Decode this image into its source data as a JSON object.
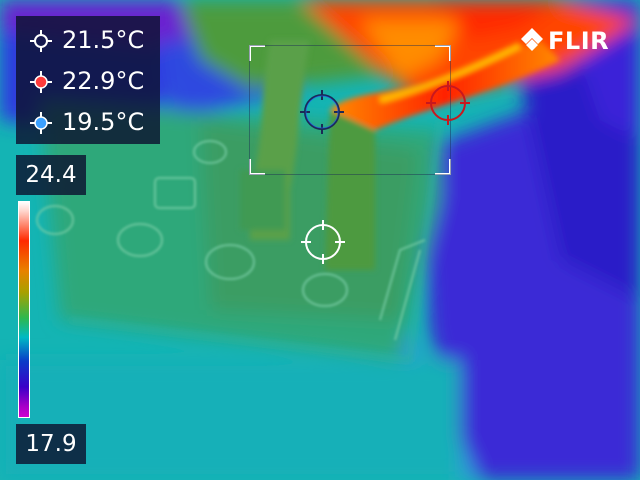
{
  "measurements": [
    {
      "label": "21.5°C",
      "marker_color": "#ffffff"
    },
    {
      "label": "22.9°C",
      "marker_color": "#ff3b3b"
    },
    {
      "label": "19.5°C",
      "marker_color": "#3ba0ff"
    }
  ],
  "scale": {
    "max": "24.4",
    "min": "17.9"
  },
  "brand": {
    "name": "FLIR"
  },
  "colors": {
    "hot_spot": "#c8181e",
    "cold_spot": "#2060ff",
    "center_spot": "#ffffff"
  }
}
